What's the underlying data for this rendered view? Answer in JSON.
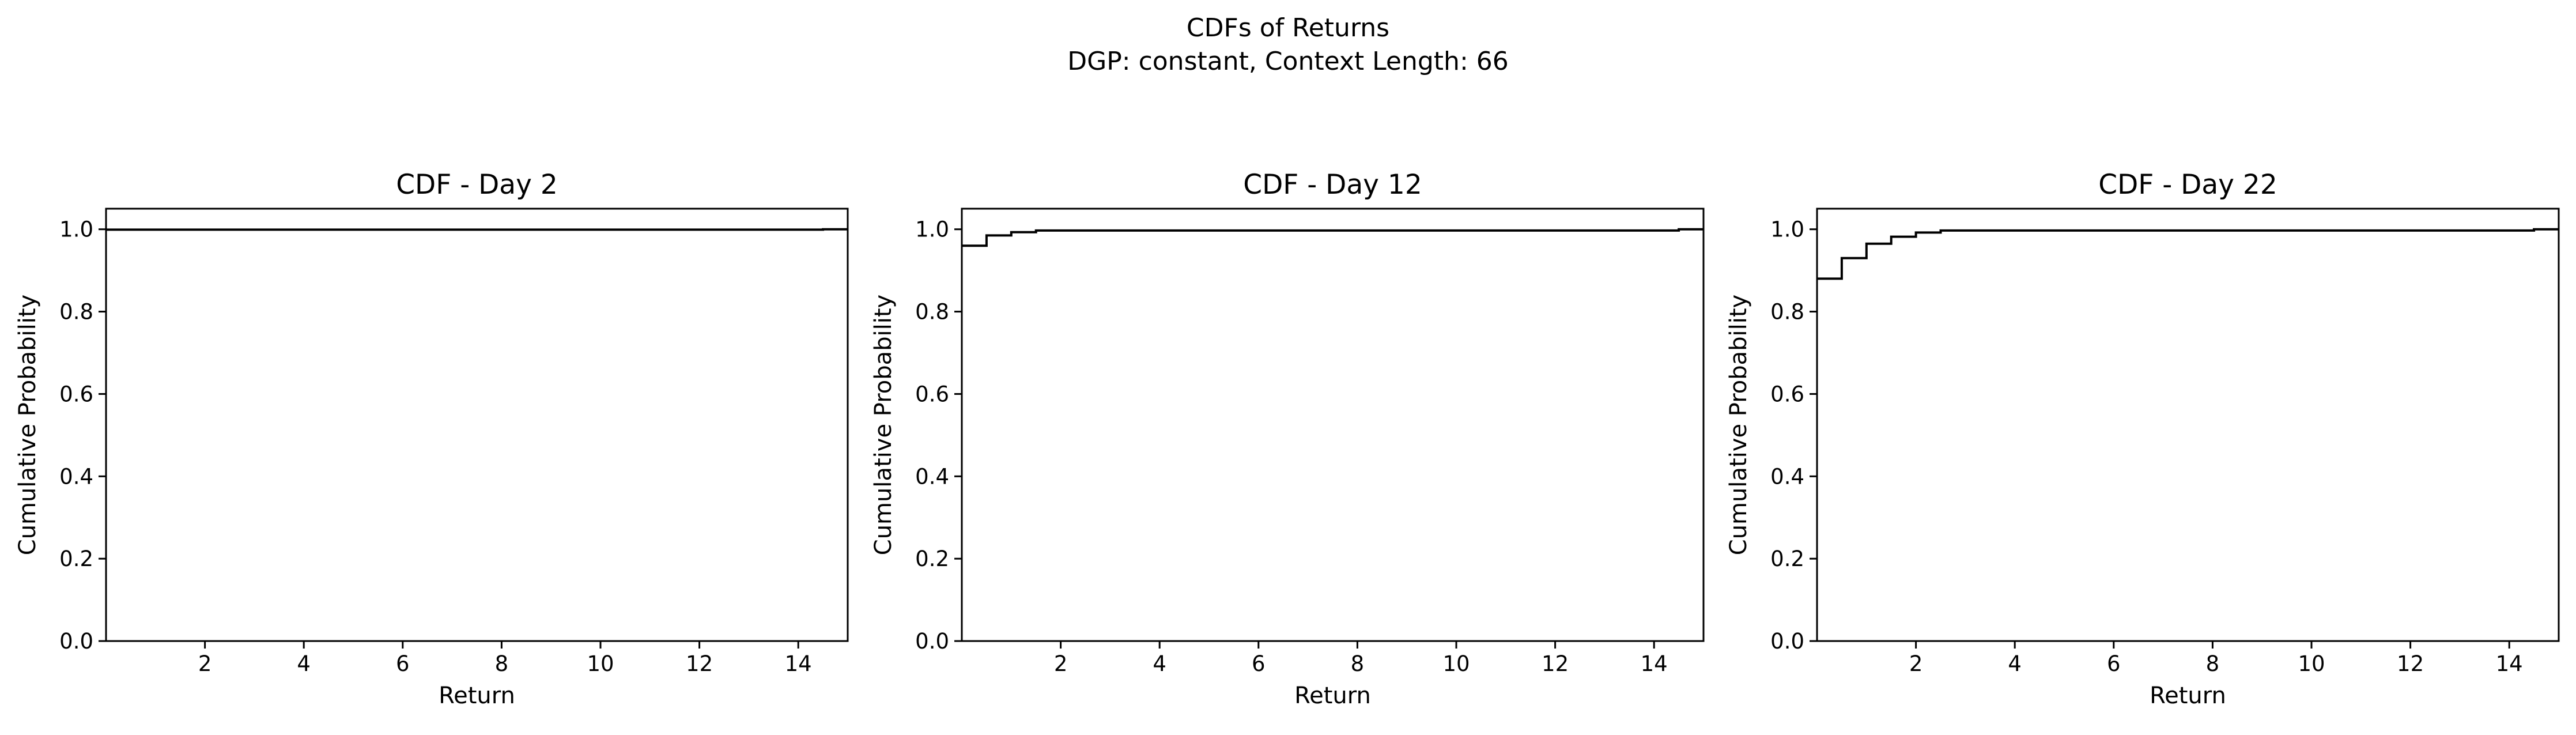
{
  "figure": {
    "title_line1": "CDFs of Returns",
    "title_line2": "DGP: constant, Context Length: 66"
  },
  "chart_data": [
    {
      "type": "line",
      "drawstyle": "step-post",
      "title": "CDF - Day 2",
      "xlabel": "Return",
      "ylabel": "Cumulative Probability",
      "xlim": [
        0,
        15
      ],
      "ylim": [
        0.0,
        1.05
      ],
      "xticks": [
        2,
        4,
        6,
        8,
        10,
        12,
        14
      ],
      "xtick_labels": [
        "2",
        "4",
        "6",
        "8",
        "10",
        "12",
        "14"
      ],
      "yticks": [
        0.0,
        0.2,
        0.4,
        0.6,
        0.8,
        1.0
      ],
      "ytick_labels": [
        "0.0",
        "0.2",
        "0.4",
        "0.6",
        "0.8",
        "1.0"
      ],
      "grid": false,
      "line_color": "#000000",
      "series": [
        {
          "x": [
            0.0,
            14.5,
            15.0
          ],
          "y": [
            0.999,
            1.0,
            1.0
          ]
        }
      ]
    },
    {
      "type": "line",
      "drawstyle": "step-post",
      "title": "CDF - Day 12",
      "xlabel": "Return",
      "ylabel": "Cumulative Probability",
      "xlim": [
        0,
        15
      ],
      "ylim": [
        0.0,
        1.05
      ],
      "xticks": [
        2,
        4,
        6,
        8,
        10,
        12,
        14
      ],
      "xtick_labels": [
        "2",
        "4",
        "6",
        "8",
        "10",
        "12",
        "14"
      ],
      "yticks": [
        0.0,
        0.2,
        0.4,
        0.6,
        0.8,
        1.0
      ],
      "ytick_labels": [
        "0.0",
        "0.2",
        "0.4",
        "0.6",
        "0.8",
        "1.0"
      ],
      "grid": false,
      "line_color": "#000000",
      "series": [
        {
          "x": [
            0.0,
            0.5,
            1.0,
            1.5,
            14.5,
            15.0
          ],
          "y": [
            0.96,
            0.985,
            0.993,
            0.997,
            1.0,
            1.0
          ]
        }
      ]
    },
    {
      "type": "line",
      "drawstyle": "step-post",
      "title": "CDF - Day 22",
      "xlabel": "Return",
      "ylabel": "Cumulative Probability",
      "xlim": [
        0,
        15
      ],
      "ylim": [
        0.0,
        1.05
      ],
      "xticks": [
        2,
        4,
        6,
        8,
        10,
        12,
        14
      ],
      "xtick_labels": [
        "2",
        "4",
        "6",
        "8",
        "10",
        "12",
        "14"
      ],
      "yticks": [
        0.0,
        0.2,
        0.4,
        0.6,
        0.8,
        1.0
      ],
      "ytick_labels": [
        "0.0",
        "0.2",
        "0.4",
        "0.6",
        "0.8",
        "1.0"
      ],
      "grid": false,
      "line_color": "#000000",
      "series": [
        {
          "x": [
            0.0,
            0.5,
            1.0,
            1.5,
            2.0,
            2.5,
            14.5,
            15.0
          ],
          "y": [
            0.88,
            0.93,
            0.965,
            0.982,
            0.992,
            0.997,
            1.0,
            1.0
          ]
        }
      ]
    }
  ]
}
